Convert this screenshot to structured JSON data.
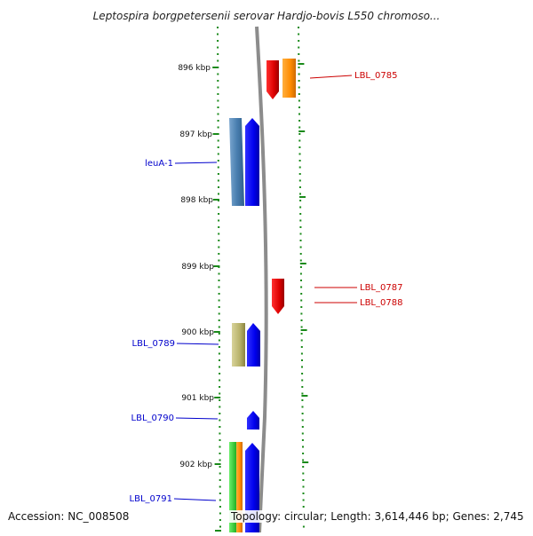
{
  "title": "Leptospira borgpetersenii serovar Hardjo-bovis L550 chromoso...",
  "footer": {
    "accession": "Accession: NC_008508",
    "summary": "Topology: circular; Length: 3,614,446 bp; Genes: 2,745"
  },
  "colors": {
    "ticks": "#1a8a1a",
    "backbone": "#8c8c8c",
    "forward_label": "#cc0000",
    "reverse_label": "#0000cc"
  },
  "kbp_labels": [
    "896 kbp",
    "897 kbp",
    "898 kbp",
    "899 kbp",
    "900 kbp",
    "901 kbp",
    "902 kbp"
  ],
  "gene_labels": {
    "right": [
      "LBL_0785",
      "LBL_0787",
      "LBL_0788"
    ],
    "left": [
      "leuA-1",
      "LBL_0789",
      "LBL_0790",
      "LBL_0791"
    ]
  }
}
